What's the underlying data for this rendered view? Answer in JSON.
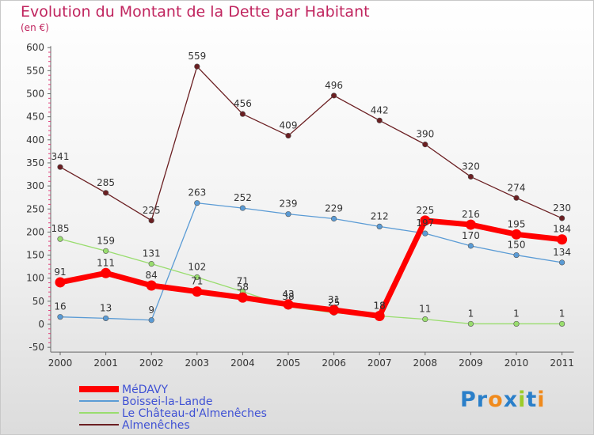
{
  "chart_data": {
    "type": "line",
    "title": "Evolution du Montant de la Dette par Habitant",
    "subtitle": "(en €)",
    "x": [
      "2000",
      "2001",
      "2002",
      "2003",
      "2004",
      "2005",
      "2006",
      "2007",
      "2008",
      "2009",
      "2010",
      "2011"
    ],
    "ylim": [
      -50,
      600
    ],
    "yticks": [
      -50,
      0,
      50,
      100,
      150,
      200,
      250,
      300,
      350,
      400,
      450,
      500,
      550,
      600
    ],
    "grid": false,
    "legend_position": "bottom-left",
    "series": [
      {
        "name": "Almenêches",
        "color": "#6b1f22",
        "values": [
          341,
          285,
          225,
          559,
          456,
          409,
          496,
          442,
          390,
          320,
          274,
          230
        ]
      },
      {
        "name": "Boissei-la-Lande",
        "color": "#5a9bd5",
        "values": [
          16,
          13,
          9,
          263,
          252,
          239,
          229,
          212,
          197,
          170,
          150,
          134
        ]
      },
      {
        "name": "Le Château-d'Almenêches",
        "color": "#99dd6e",
        "values": [
          185,
          159,
          131,
          102,
          71,
          38,
          25,
          18,
          11,
          1,
          1,
          1
        ]
      },
      {
        "name": "MéDAVY",
        "color": "#ff0000",
        "values": [
          91,
          111,
          84,
          71,
          58,
          43,
          31,
          18,
          225,
          216,
          195,
          184
        ]
      }
    ],
    "data_labels": {
      "Almenêches": [
        "341",
        "285",
        "225",
        "559",
        "456",
        "409",
        "496",
        "442",
        "390",
        "320",
        "274",
        "230"
      ],
      "Boissei-la-Lande": [
        "16",
        "13",
        "9",
        "263",
        "252",
        "239",
        "229",
        "212",
        "197",
        "170",
        "150",
        "134"
      ],
      "Le Château-d'Almenêches": [
        "185",
        "159",
        "131",
        "102",
        "71",
        "38",
        "25",
        "18",
        "11",
        "1",
        "1",
        "1"
      ],
      "MéDAVY": [
        "91",
        "111",
        "84",
        "71",
        "58",
        "43",
        "31",
        "18",
        "225",
        "216",
        "195",
        "184"
      ]
    },
    "legend": [
      "MéDAVY",
      "Boissei-la-Lande",
      "Le Château-d'Almenêches",
      "Almenêches"
    ]
  },
  "logo": {
    "text": "Proxiti",
    "letters": [
      "P",
      "r",
      "o",
      "x",
      "i",
      "t",
      "i"
    ],
    "colors": [
      "#2a7fc9",
      "#2a7fc9",
      "#f08a1c",
      "#2a7fc9",
      "#9ccc2a",
      "#2a7fc9",
      "#f08a1c"
    ]
  }
}
